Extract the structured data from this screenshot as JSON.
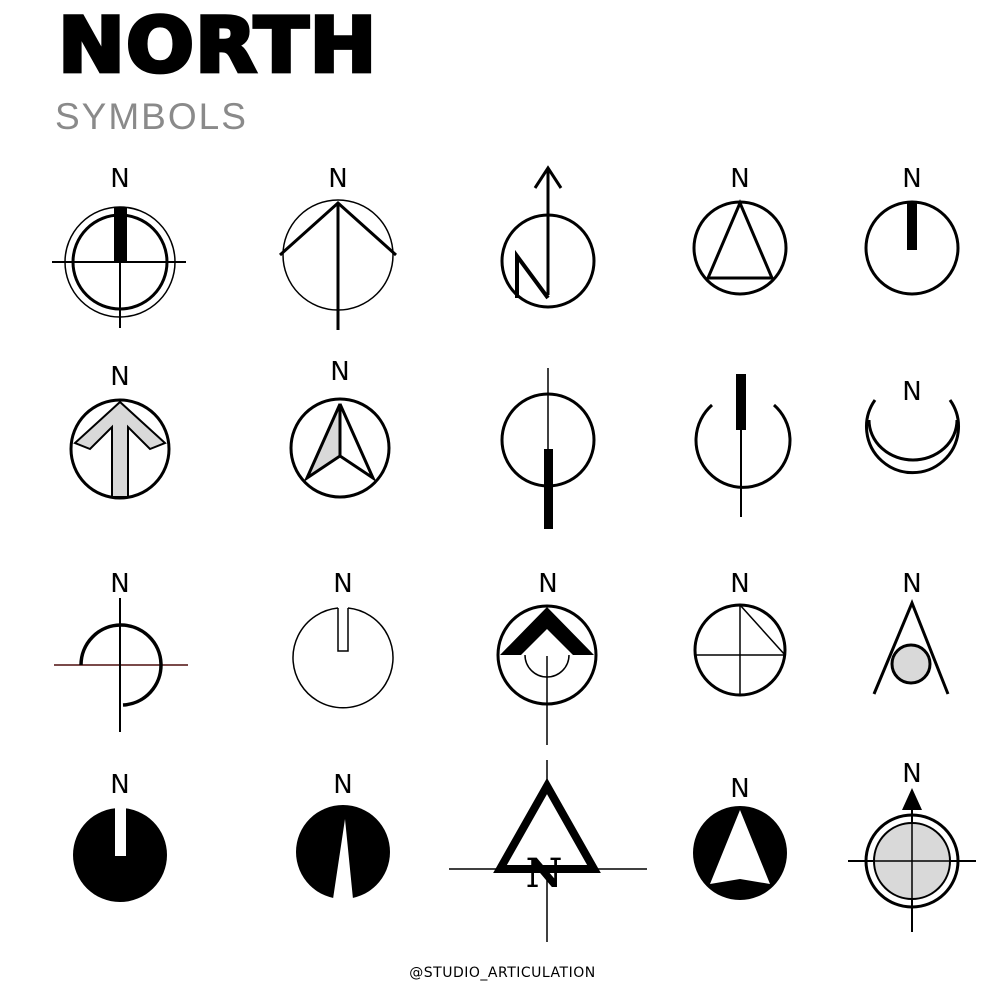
{
  "header": {
    "title": "NORTH",
    "subtitle": "SYMBOLS"
  },
  "footer": {
    "credit": "@STUDIO_ARTICULATION"
  },
  "symbol_label": "N",
  "colors": {
    "ink": "#000000",
    "subtitle_gray": "#8a8a8a",
    "fill_gray": "#d9d9d9"
  }
}
